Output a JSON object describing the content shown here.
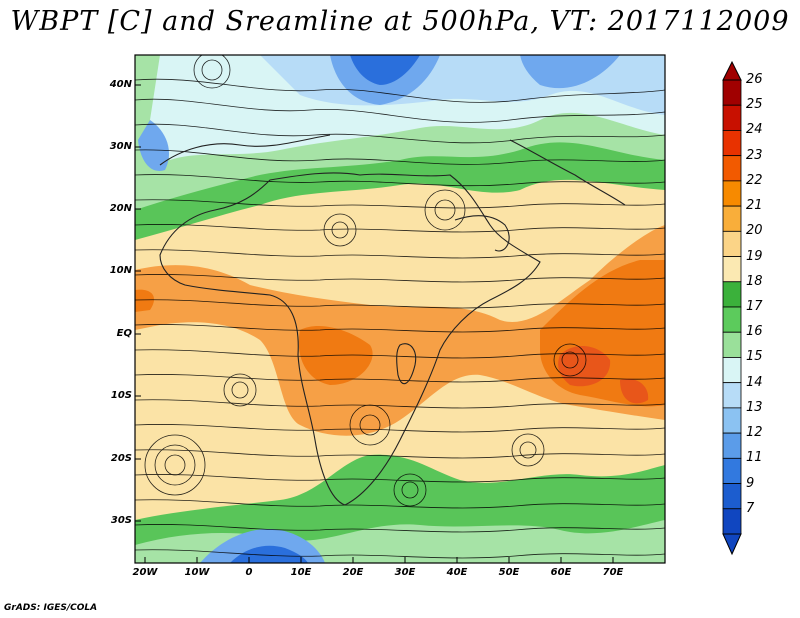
{
  "title": "WBPT [C] and Sreamline at 500hPa, VT: 2017112009",
  "credit": "GrADS: IGES/COLA",
  "lat_labels": [
    "40N",
    "30N",
    "20N",
    "10N",
    "EQ",
    "10S",
    "20S",
    "30S"
  ],
  "lon_labels": [
    "20W",
    "10W",
    "0",
    "10E",
    "20E",
    "30E",
    "40E",
    "50E",
    "60E",
    "70E"
  ],
  "colorbar": {
    "labels": [
      "26",
      "25",
      "24",
      "23",
      "22",
      "21",
      "20",
      "19",
      "18",
      "17",
      "16",
      "15",
      "14",
      "13",
      "12",
      "11",
      "9",
      "7"
    ],
    "colors": [
      "#a00000",
      "#c81000",
      "#e83200",
      "#f25a00",
      "#f78a00",
      "#f9ae3a",
      "#fbd487",
      "#fbe9b2",
      "#3bb13b",
      "#5ccb5c",
      "#9ae09a",
      "#d9f5f5",
      "#b7dcf7",
      "#8bc2f2",
      "#5b9ce9",
      "#3279df",
      "#1c5dcf",
      "#1046c0"
    ],
    "arrow_top_color": "#a00000",
    "arrow_bottom_color": "#1046c0"
  }
}
